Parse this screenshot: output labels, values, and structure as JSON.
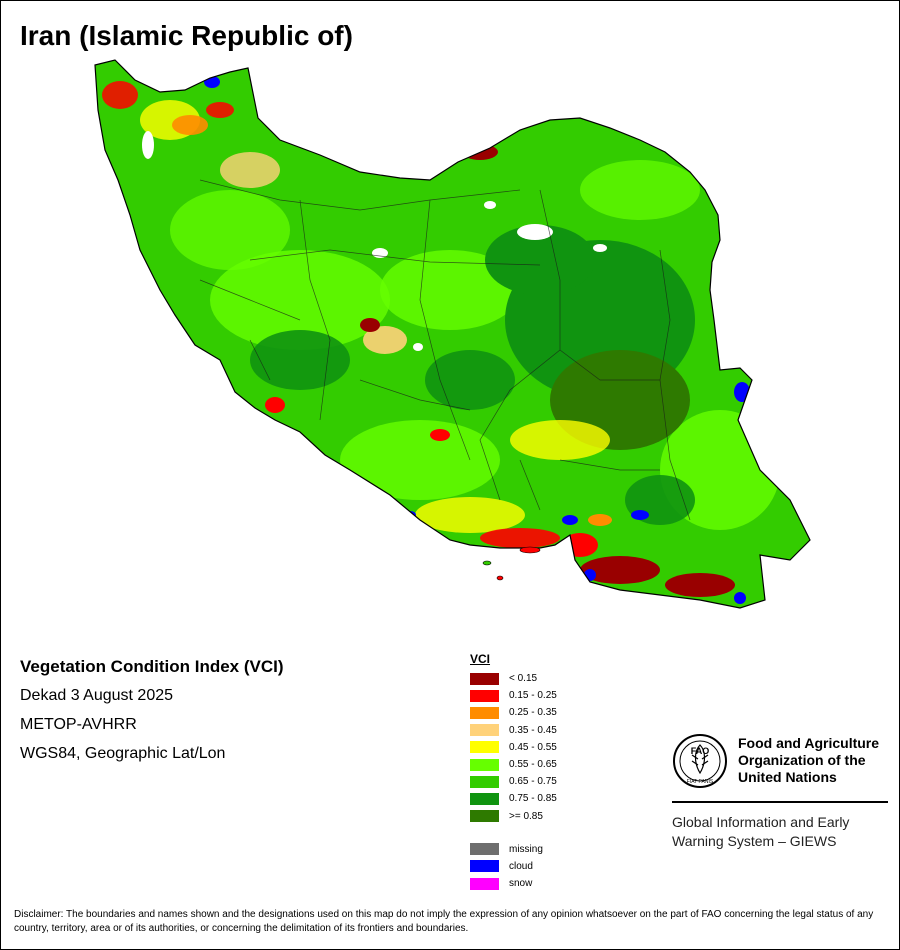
{
  "map": {
    "title": "Iran (Islamic Republic of)",
    "index_name": "Vegetation Condition Index (VCI)",
    "period": "Dekad 3 August 2025",
    "sensor": "METOP-AVHRR",
    "projection": "WGS84, Geographic Lat/Lon"
  },
  "legend": {
    "title": "VCI",
    "classes": [
      {
        "label": "< 0.15",
        "color": "#990000"
      },
      {
        "label": "0.15 - 0.25",
        "color": "#ff0000"
      },
      {
        "label": "0.25 - 0.35",
        "color": "#ff8c00"
      },
      {
        "label": "0.35 - 0.45",
        "color": "#ffd27a"
      },
      {
        "label": "0.45 - 0.55",
        "color": "#ffff00"
      },
      {
        "label": "0.55 - 0.65",
        "color": "#66ff00"
      },
      {
        "label": "0.65 - 0.75",
        "color": "#33cc00"
      },
      {
        "label": "0.75 - 0.85",
        "color": "#109410"
      },
      {
        "label": ">= 0.85",
        "color": "#2e7a00"
      }
    ],
    "extra": [
      {
        "label": "missing",
        "color": "#6e6e6e"
      },
      {
        "label": "cloud",
        "color": "#0000ff"
      },
      {
        "label": "snow",
        "color": "#ff00ff"
      }
    ]
  },
  "organization": {
    "name_line1": "Food and Agriculture",
    "name_line2": "Organization of the",
    "name_line3": "United Nations",
    "emblem_text": "FAO",
    "emblem_motto": "FIAT PANIS",
    "system_line1": "Global Information and Early",
    "system_line2": "Warning System – GIEWS"
  },
  "disclaimer": "Disclaimer: The boundaries and names shown and the designations used on this map do not imply the expression of any opinion whatsoever on the part of FAO concerning the legal status of any country, territory, area or of its authorities, or concerning the delimitation of its frontiers and boundaries."
}
